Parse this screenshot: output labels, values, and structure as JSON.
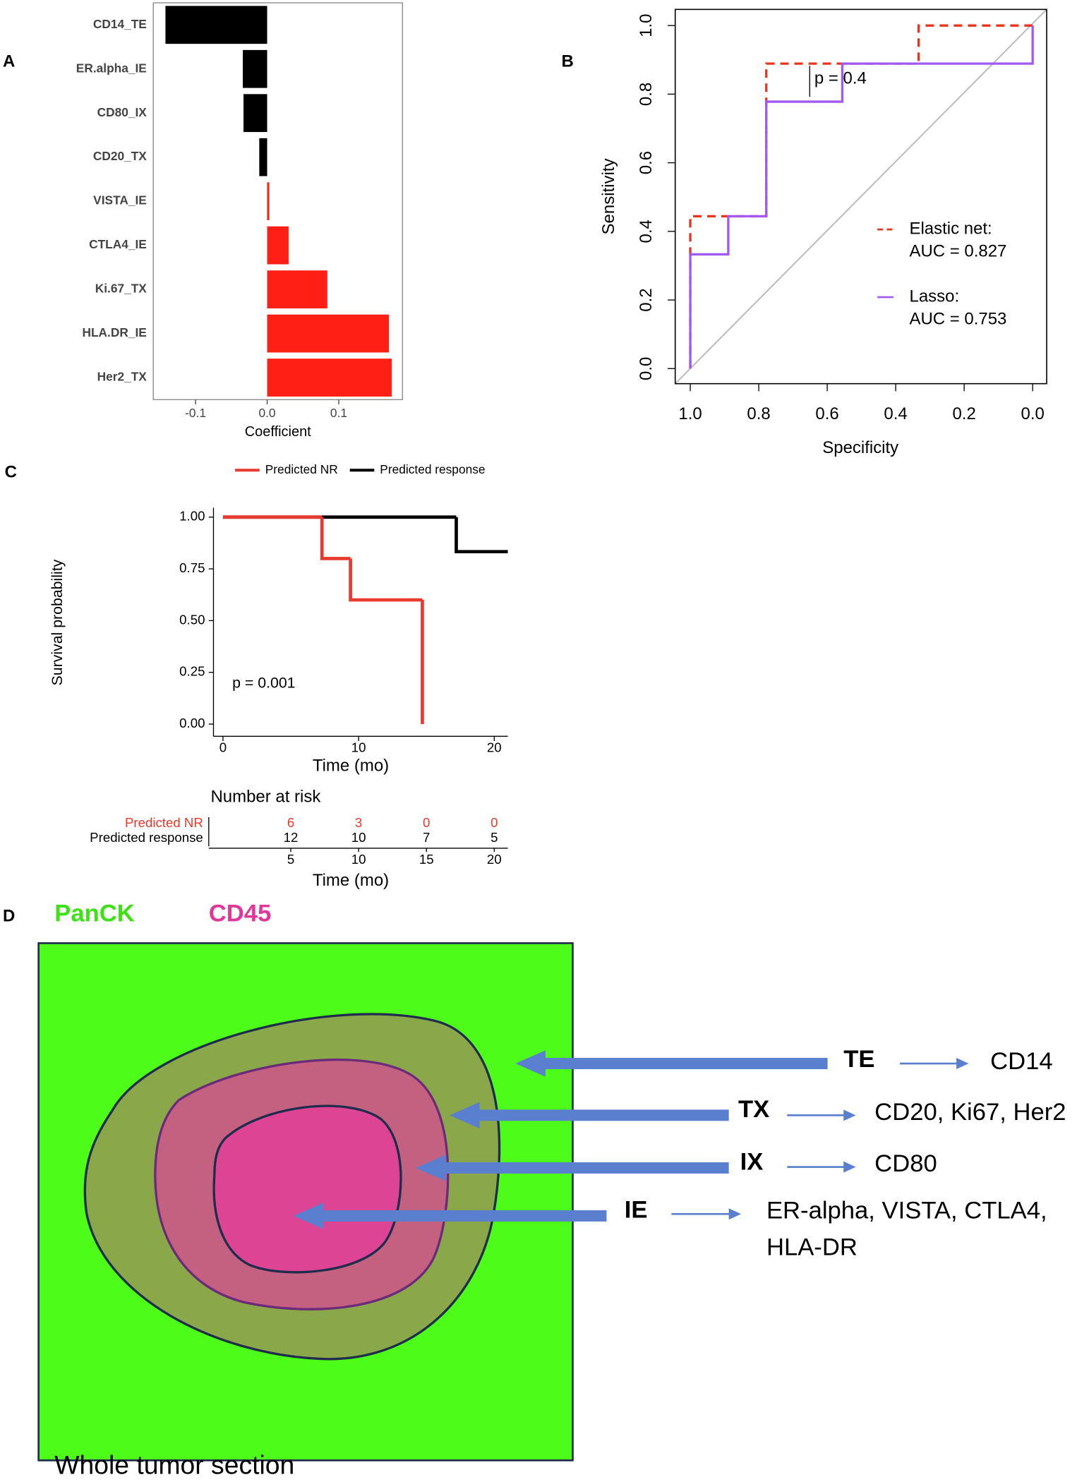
{
  "chart_data": [
    {
      "panel": "A",
      "type": "hbar",
      "xlabel": "Coefficient",
      "categories": [
        "CD14_TE",
        "ER.alpha_IE",
        "CD80_IX",
        "CD20_TX",
        "VISTA_IE",
        "CTLA4_IE",
        "Ki.67_TX",
        "HLA.DR_IE",
        "Her2_TX"
      ],
      "values": [
        -0.142,
        -0.034,
        -0.033,
        -0.011,
        0.003,
        0.03,
        0.084,
        0.17,
        0.174
      ],
      "negative_color": "#000000",
      "positive_color": "#ff1f14",
      "xlim": [
        -0.159,
        0.189
      ],
      "xticks": [
        -0.1,
        {
          "value": 0,
          "label": "0.0"
        },
        0.1
      ]
    },
    {
      "panel": "B",
      "type": "roc",
      "xlabel": "Specificity",
      "ylabel": "Sensitivity",
      "xlim": [
        1.044,
        -0.041
      ],
      "ylim": [
        -0.044,
        1.047
      ],
      "xticks": [
        {
          "value": 1,
          "label": "1.0"
        },
        0.8,
        0.6,
        0.4,
        0.2,
        {
          "value": 0,
          "label": "0.0"
        }
      ],
      "yticks": [
        {
          "value": 0,
          "label": "0.0"
        },
        0.2,
        0.4,
        0.6,
        0.8,
        {
          "value": 1,
          "label": "1.0"
        }
      ],
      "annotation": "p = 0.4",
      "series": [
        {
          "name": "Elastic net:",
          "auc_label": "AUC = 0.827",
          "color": "#e8341c",
          "dashed": true,
          "x": [
            1,
            1,
            0.778,
            0.778,
            0.333,
            0.333,
            0
          ],
          "values": [
            0,
            0.444,
            0.444,
            0.889,
            0.889,
            1,
            1
          ]
        },
        {
          "name": "Lasso:",
          "auc_label": "AUC = 0.753",
          "color": "#a259f0",
          "dashed": false,
          "x": [
            1,
            1,
            0.889,
            0.889,
            0.778,
            0.778,
            0.556,
            0.556,
            0,
            0
          ],
          "values": [
            0,
            0.333,
            0.333,
            0.444,
            0.444,
            0.778,
            0.778,
            0.889,
            0.889,
            1
          ]
        }
      ]
    },
    {
      "panel": "C",
      "type": "step",
      "xlabel": "Time (mo)",
      "ylabel": "Survival probability",
      "xlim": [
        -0.7,
        21
      ],
      "ylim": [
        -0.059,
        1.045
      ],
      "xticks": [
        0,
        10,
        20
      ],
      "yticks": [
        {
          "value": 0,
          "label": "0.00"
        },
        0.25,
        {
          "value": 0.5,
          "label": "0.50"
        },
        0.75,
        {
          "value": 1,
          "label": "1.00"
        }
      ],
      "annotation": "p = 0.001",
      "series": [
        {
          "name": "Predicted NR",
          "color": "#e8392c",
          "x": [
            0,
            7.3,
            9.4,
            14.7
          ],
          "values": [
            1,
            0.8,
            0.6,
            0
          ]
        },
        {
          "name": "Predicted response",
          "color": "#000000",
          "x": [
            0,
            17.2,
            21
          ],
          "values": [
            1,
            0.833,
            0.833
          ]
        }
      ],
      "risk_table": {
        "title": "Number at risk",
        "xlabel": "Time (mo)",
        "times": [
          5,
          10,
          15,
          20
        ],
        "rows": [
          {
            "name": "Predicted NR",
            "color": "#e8392c",
            "values": [
              6,
              3,
              0,
              0
            ]
          },
          {
            "name": "Predicted response",
            "color": "#000000",
            "values": [
              12,
              10,
              7,
              5
            ]
          }
        ]
      }
    }
  ],
  "diagram": {
    "panel": "D",
    "legend": [
      "PanCK",
      "CD45"
    ],
    "caption": "Whole tumor section",
    "regions": [
      {
        "code": "TE",
        "markers": [
          "CD14"
        ]
      },
      {
        "code": "TX",
        "markers": [
          "CD20, Ki67, Her2"
        ]
      },
      {
        "code": "IX",
        "markers": [
          "CD80"
        ]
      },
      {
        "code": "IE",
        "markers": [
          "ER-alpha, VISTA, CTLA4,",
          "HLA-DR"
        ]
      }
    ]
  }
}
